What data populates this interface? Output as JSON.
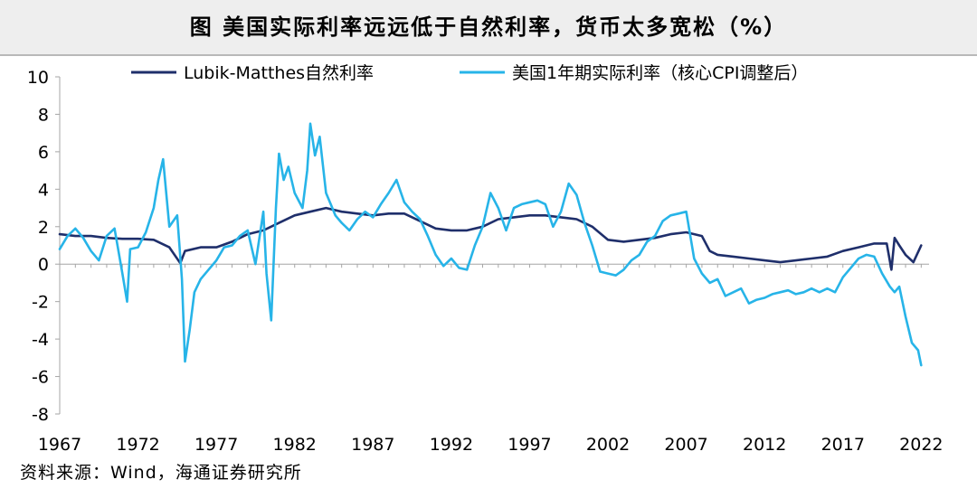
{
  "title": "图  美国实际利率远远低于自然利率，货币太多宽松（%）",
  "source": "资料来源：Wind，海通证券研究所",
  "chart_data": {
    "type": "line",
    "xlim": [
      1967,
      2022.5
    ],
    "ylim": [
      -8,
      10
    ],
    "y_ticks": [
      10,
      8,
      6,
      4,
      2,
      0,
      -2,
      -4,
      -6,
      -8
    ],
    "x_ticks": [
      1967,
      1972,
      1977,
      1982,
      1987,
      1992,
      1997,
      2002,
      2007,
      2012,
      2017,
      2022
    ],
    "legend_position": "top",
    "series": [
      {
        "name": "Lubik-Matthes自然利率",
        "color": "#1f2f6b",
        "x": [
          1967,
          1968,
          1969,
          1970,
          1971,
          1972,
          1973,
          1974,
          1974.7,
          1975,
          1976,
          1977,
          1978,
          1979,
          1980,
          1981,
          1982,
          1983,
          1984,
          1985,
          1986,
          1987,
          1988,
          1989,
          1990,
          1991,
          1992,
          1993,
          1994,
          1995,
          1996,
          1997,
          1998,
          1999,
          2000,
          2001,
          2002,
          2003,
          2004,
          2005,
          2006,
          2007,
          2008,
          2008.5,
          2009,
          2010,
          2011,
          2012,
          2013,
          2014,
          2015,
          2016,
          2017,
          2018,
          2019,
          2019.8,
          2020.1,
          2020.3,
          2020.6,
          2021,
          2021.5,
          2022
        ],
        "values": [
          1.6,
          1.5,
          1.5,
          1.4,
          1.35,
          1.35,
          1.3,
          0.9,
          0.05,
          0.7,
          0.9,
          0.9,
          1.2,
          1.6,
          1.8,
          2.2,
          2.6,
          2.8,
          3.0,
          2.8,
          2.7,
          2.6,
          2.7,
          2.7,
          2.3,
          1.9,
          1.8,
          1.8,
          2.0,
          2.4,
          2.5,
          2.6,
          2.6,
          2.5,
          2.4,
          2.0,
          1.3,
          1.2,
          1.3,
          1.4,
          1.6,
          1.7,
          1.5,
          0.7,
          0.5,
          0.4,
          0.3,
          0.2,
          0.1,
          0.2,
          0.3,
          0.4,
          0.7,
          0.9,
          1.1,
          1.1,
          -0.3,
          1.4,
          1.0,
          0.5,
          0.1,
          1.0
        ]
      },
      {
        "name": "美国1年期实际利率（核心CPI调整后）",
        "color": "#27b4e8",
        "x": [
          1967,
          1967.5,
          1968,
          1968.5,
          1969,
          1969.5,
          1970,
          1970.5,
          1971,
          1971.3,
          1971.5,
          1972,
          1972.5,
          1973,
          1973.3,
          1973.6,
          1974,
          1974.5,
          1974.8,
          1975,
          1975.3,
          1975.6,
          1976,
          1976.5,
          1977,
          1977.5,
          1978,
          1978.5,
          1979,
          1979.5,
          1980,
          1980.2,
          1980.5,
          1980.8,
          1981,
          1981.3,
          1981.6,
          1982,
          1982.5,
          1982.8,
          1983,
          1983.3,
          1983.6,
          1984,
          1984.3,
          1984.6,
          1985,
          1985.5,
          1986,
          1986.5,
          1987,
          1987.5,
          1988,
          1988.5,
          1989,
          1989.5,
          1990,
          1990.5,
          1991,
          1991.5,
          1992,
          1992.5,
          1993,
          1993.5,
          1994,
          1994.5,
          1995,
          1995.5,
          1996,
          1996.5,
          1997,
          1997.5,
          1998,
          1998.5,
          1999,
          1999.5,
          2000,
          2000.5,
          2001,
          2001.5,
          2002,
          2002.5,
          2003,
          2003.5,
          2004,
          2004.5,
          2005,
          2005.5,
          2006,
          2006.5,
          2007,
          2007.5,
          2008,
          2008.5,
          2009,
          2009.5,
          2010,
          2010.5,
          2011,
          2011.5,
          2012,
          2012.5,
          2013,
          2013.5,
          2014,
          2014.5,
          2015,
          2015.5,
          2016,
          2016.5,
          2017,
          2017.5,
          2018,
          2018.5,
          2019,
          2019.5,
          2020,
          2020.3,
          2020.6,
          2021,
          2021.4,
          2021.8,
          2022
        ],
        "values": [
          0.8,
          1.5,
          1.9,
          1.4,
          0.7,
          0.2,
          1.5,
          1.9,
          -0.5,
          -2.0,
          0.8,
          0.9,
          1.7,
          3.0,
          4.5,
          5.6,
          2.0,
          2.6,
          -0.8,
          -5.2,
          -3.5,
          -1.5,
          -0.8,
          -0.3,
          0.2,
          0.9,
          1.0,
          1.5,
          1.8,
          0.0,
          2.8,
          -0.5,
          -3.0,
          3.0,
          5.9,
          4.5,
          5.2,
          3.8,
          3.0,
          5.0,
          7.5,
          5.8,
          6.8,
          3.8,
          3.2,
          2.6,
          2.2,
          1.8,
          2.4,
          2.8,
          2.5,
          3.2,
          3.8,
          4.5,
          3.3,
          2.8,
          2.4,
          1.5,
          0.5,
          -0.1,
          0.3,
          -0.2,
          -0.3,
          1.0,
          2.0,
          3.8,
          3.0,
          1.8,
          3.0,
          3.2,
          3.3,
          3.4,
          3.2,
          2.0,
          2.8,
          4.3,
          3.7,
          2.2,
          1.0,
          -0.4,
          -0.5,
          -0.6,
          -0.3,
          0.2,
          0.5,
          1.2,
          1.5,
          2.3,
          2.6,
          2.7,
          2.8,
          0.3,
          -0.5,
          -1.0,
          -0.8,
          -1.7,
          -1.5,
          -1.3,
          -2.1,
          -1.9,
          -1.8,
          -1.6,
          -1.5,
          -1.4,
          -1.6,
          -1.5,
          -1.3,
          -1.5,
          -1.3,
          -1.5,
          -0.7,
          -0.2,
          0.3,
          0.5,
          0.4,
          -0.5,
          -1.2,
          -1.5,
          -1.2,
          -2.8,
          -4.2,
          -4.6,
          -5.4
        ]
      }
    ]
  }
}
